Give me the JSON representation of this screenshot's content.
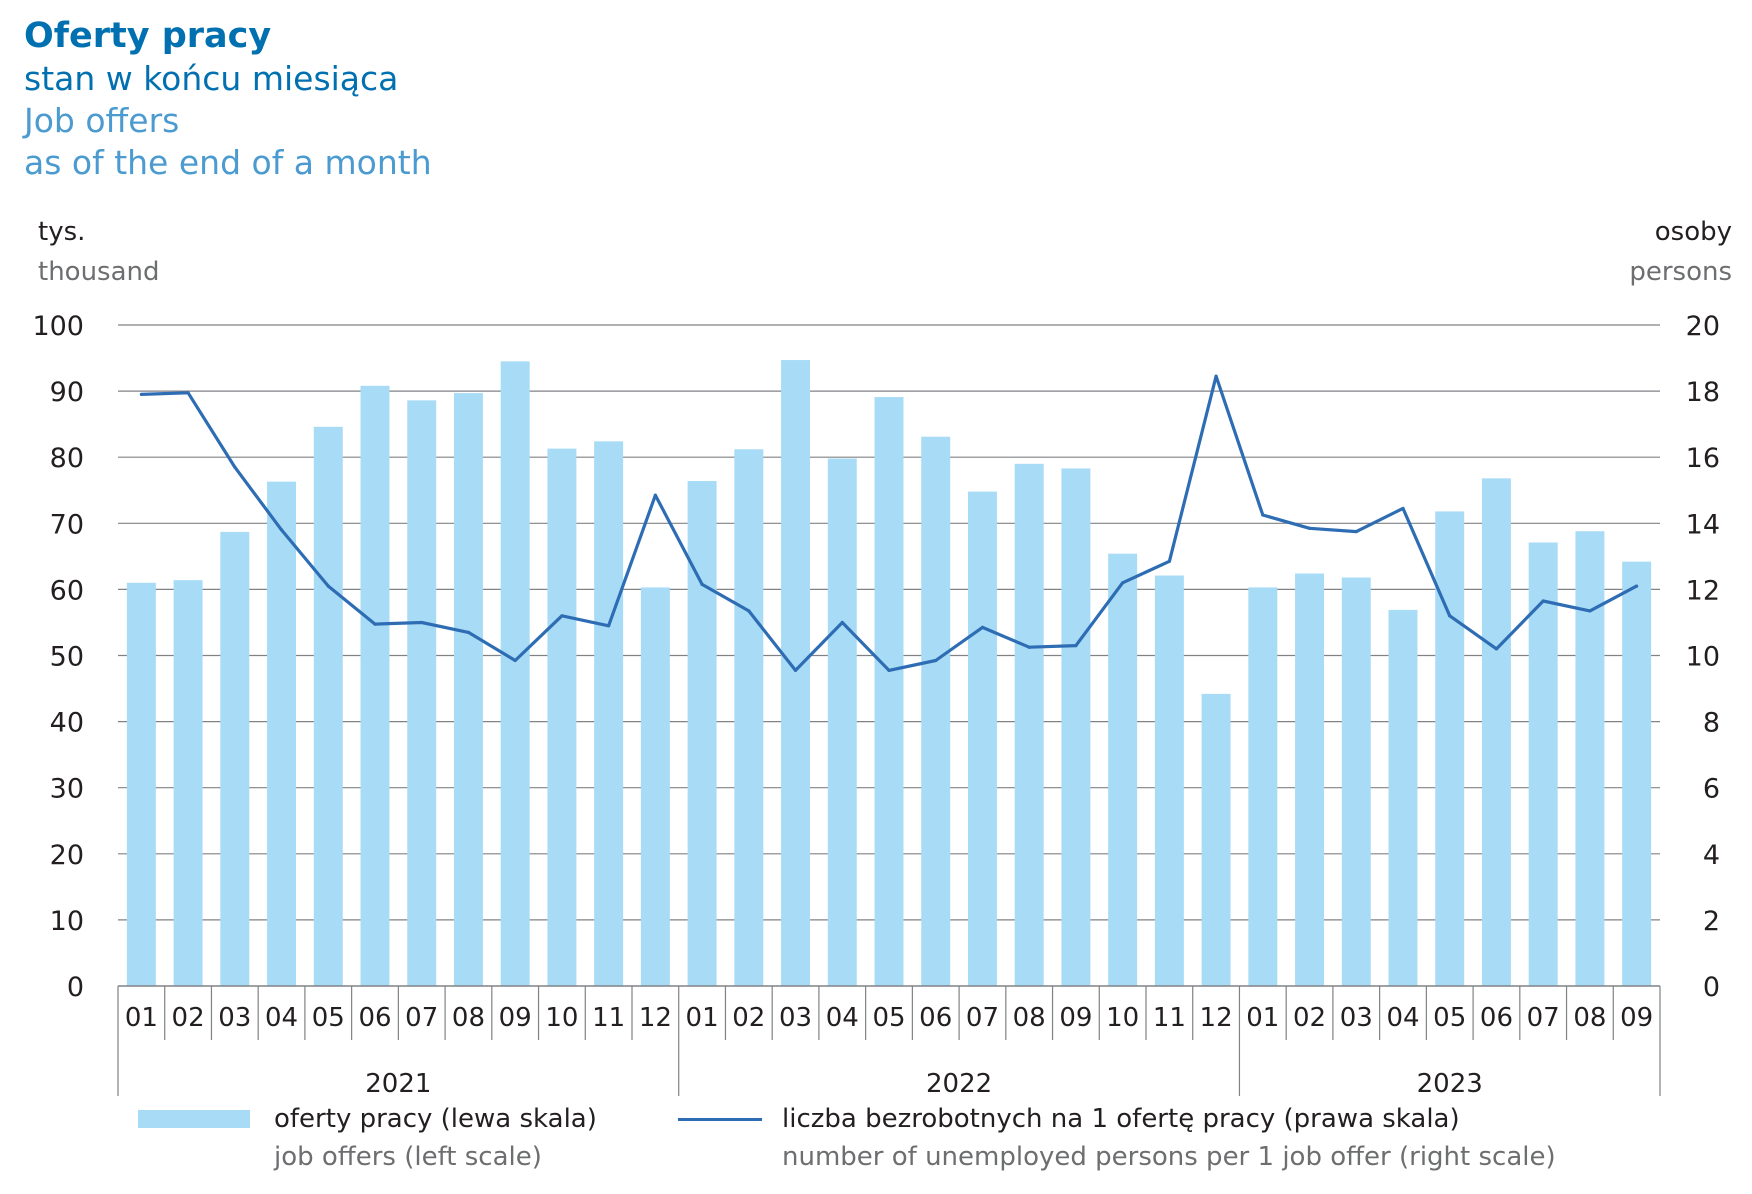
{
  "title": "Oferty pracy",
  "subtitle_pl": "stan w końcu miesiąca",
  "title_en": "Job offers",
  "subtitle_en": "as of the end of a month",
  "colors": {
    "title": "#0070b0",
    "subtitle_pl": "#0070b0",
    "title_en": "#4b9bd0",
    "bars": "#a8dcf6",
    "line": "#2e6db4",
    "grid": "#808285",
    "text": "#231f20",
    "unit_en": "#6d6e70"
  },
  "chart_data": {
    "type": "bar",
    "left_unit": {
      "pl": "tys.",
      "en": "thousand"
    },
    "right_unit": {
      "pl": "osoby",
      "en": "persons"
    },
    "categories": [
      "01",
      "02",
      "03",
      "04",
      "05",
      "06",
      "07",
      "08",
      "09",
      "10",
      "11",
      "12",
      "01",
      "02",
      "03",
      "04",
      "05",
      "06",
      "07",
      "08",
      "09",
      "10",
      "11",
      "12",
      "01",
      "02",
      "03",
      "04",
      "05",
      "06",
      "07",
      "08",
      "09"
    ],
    "years": [
      {
        "label": "2021",
        "months": 12
      },
      {
        "label": "2022",
        "months": 12
      },
      {
        "label": "2023",
        "months": 9
      }
    ],
    "ylim_left": [
      0,
      100
    ],
    "yticks_left": [
      0,
      10,
      20,
      30,
      40,
      50,
      60,
      70,
      80,
      90,
      100
    ],
    "ylim_right": [
      0,
      20
    ],
    "yticks_right": [
      0,
      2,
      4,
      6,
      8,
      10,
      12,
      14,
      16,
      18,
      20
    ],
    "grid": true,
    "series": [
      {
        "name": "oferty pracy (lewa skala)",
        "name_en": "job offers (left scale)",
        "type": "bar",
        "axis": "left",
        "values": [
          61.0,
          61.4,
          68.7,
          76.3,
          84.6,
          90.8,
          88.6,
          89.7,
          94.5,
          81.3,
          82.4,
          60.3,
          76.4,
          81.2,
          94.7,
          79.8,
          89.1,
          83.1,
          74.8,
          79.0,
          78.3,
          65.4,
          62.1,
          44.2,
          60.3,
          62.4,
          61.8,
          56.9,
          71.8,
          76.8,
          67.1,
          68.8,
          64.2
        ]
      },
      {
        "name": "liczba bezrobotnych na 1 ofertę pracy (prawa skala)",
        "name_en": "number of unemployed persons per 1 job offer (right scale)",
        "type": "line",
        "axis": "right",
        "values": [
          17.9,
          17.95,
          15.7,
          13.8,
          12.1,
          10.95,
          11.0,
          10.7,
          9.85,
          11.2,
          10.9,
          14.85,
          12.15,
          11.35,
          9.55,
          11.0,
          9.55,
          9.85,
          10.85,
          10.25,
          10.3,
          12.2,
          12.85,
          18.45,
          14.25,
          13.85,
          13.75,
          14.45,
          11.2,
          10.2,
          11.65,
          11.35,
          12.1
        ]
      }
    ]
  }
}
